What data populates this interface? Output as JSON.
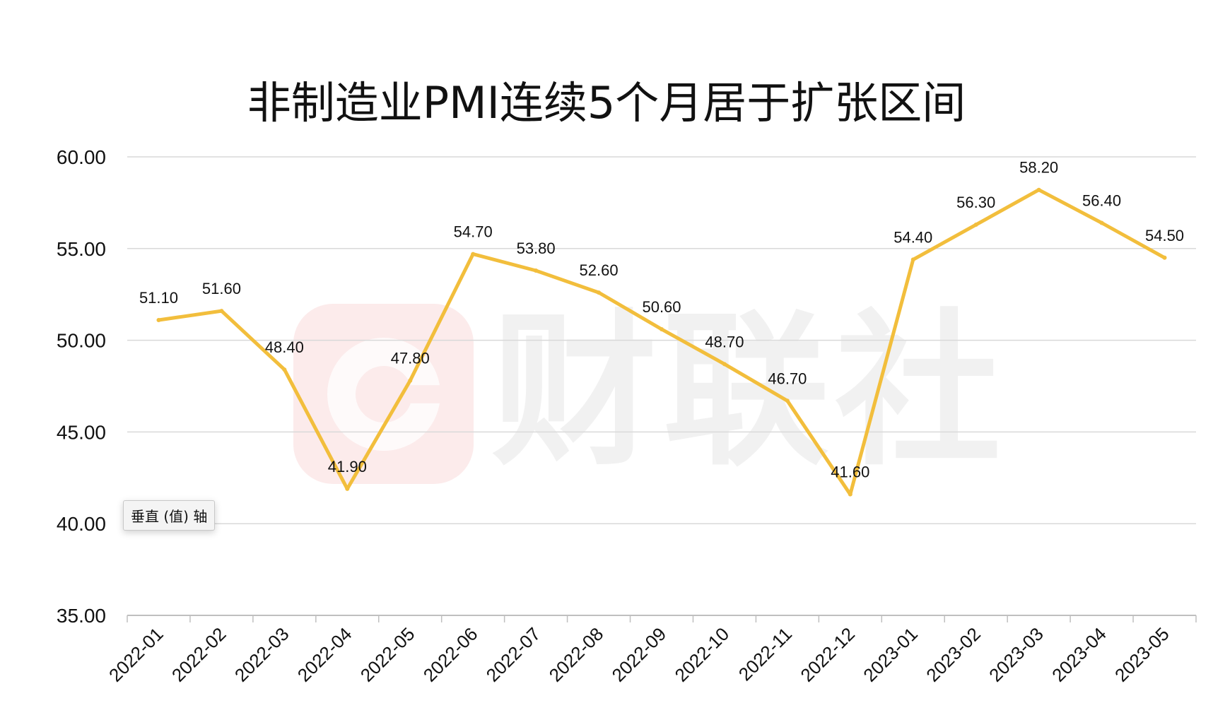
{
  "watermark": {
    "text": "财联社"
  },
  "tooltip": {
    "text": "垂直 (值) 轴"
  },
  "colors": {
    "line": "#F2BE3C",
    "grid": "#D9D9D9",
    "axis": "#BFBFBF",
    "text": "#111111"
  },
  "chart_data": {
    "type": "line",
    "title": "非制造业PMI连续5个月居于扩张区间",
    "xlabel": "",
    "ylabel": "",
    "categories": [
      "2022-01",
      "2022-02",
      "2022-03",
      "2022-04",
      "2022-05",
      "2022-06",
      "2022-07",
      "2022-08",
      "2022-09",
      "2022-10",
      "2022-11",
      "2022-12",
      "2023-01",
      "2023-02",
      "2023-03",
      "2023-04",
      "2023-05"
    ],
    "series": [
      {
        "values": [
          51.1,
          51.6,
          48.4,
          41.9,
          47.8,
          54.7,
          53.8,
          52.6,
          50.6,
          48.7,
          46.7,
          41.6,
          54.4,
          56.3,
          58.2,
          56.4,
          54.5
        ]
      }
    ],
    "ylim": [
      35,
      60
    ],
    "yticks": [
      35,
      40,
      45,
      50,
      55,
      60
    ],
    "grid": true,
    "legend": "none",
    "data_labels": true
  }
}
